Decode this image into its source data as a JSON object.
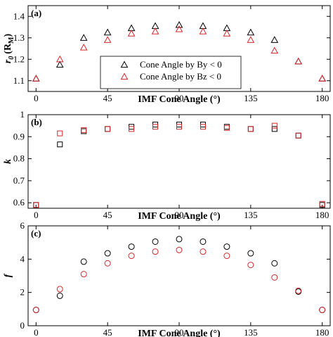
{
  "colors": {
    "by": "#000000",
    "bz": "#d62728"
  },
  "chart_data": [
    {
      "type": "scatter",
      "panel": "(a)",
      "ylabel_main": "r",
      "ylabel_sub": "0",
      "ylabel_unit": "(R",
      "ylabel_unit_sub": "M",
      "ylabel_close": ")",
      "xlabel": "IMF Cone Angle (°)",
      "xlim": [
        -5,
        185
      ],
      "ylim": [
        1.05,
        1.45
      ],
      "xticks": [
        0,
        45,
        90,
        135,
        180
      ],
      "xticklabels": [
        "0",
        "45",
        "90",
        "135",
        "180"
      ],
      "yticks": [
        1.1,
        1.2,
        1.3,
        1.4
      ],
      "yticklabels": [
        "1.1",
        "1.2",
        "1.3",
        "1.4"
      ],
      "marker": "triangle",
      "legend": {
        "placement": "center",
        "entries": [
          "Cone Angle by By < 0",
          "Cone Angle by Bz < 0"
        ]
      },
      "series": [
        {
          "name": "Cone Angle by By < 0",
          "color": "#000000",
          "x": [
            0,
            15,
            30,
            45,
            60,
            75,
            90,
            105,
            120,
            135,
            150,
            165,
            180
          ],
          "y": [
            1.11,
            1.175,
            1.3,
            1.325,
            1.345,
            1.355,
            1.36,
            1.355,
            1.345,
            1.325,
            1.29,
            1.19,
            1.11
          ]
        },
        {
          "name": "Cone Angle by Bz < 0",
          "color": "#d62728",
          "x": [
            0,
            15,
            30,
            45,
            60,
            75,
            90,
            105,
            120,
            135,
            150,
            165,
            180
          ],
          "y": [
            1.11,
            1.2,
            1.255,
            1.29,
            1.32,
            1.33,
            1.34,
            1.33,
            1.32,
            1.29,
            1.24,
            1.19,
            1.11
          ]
        }
      ]
    },
    {
      "type": "scatter",
      "panel": "(b)",
      "ylabel_main": "k",
      "xlabel": "IMF Cone Angle (°)",
      "xlim": [
        -5,
        185
      ],
      "ylim": [
        0.575,
        1.0
      ],
      "xticks": [
        0,
        45,
        90,
        135,
        180
      ],
      "xticklabels": [
        "0",
        "45",
        "90",
        "135",
        "180"
      ],
      "yticks": [
        0.6,
        0.7,
        0.8,
        0.9,
        1.0
      ],
      "yticklabels": [
        "0.6",
        "0.7",
        "0.8",
        "0.9",
        "1"
      ],
      "marker": "square",
      "series": [
        {
          "name": "Cone Angle by By < 0",
          "color": "#000000",
          "x": [
            0,
            15,
            30,
            45,
            60,
            75,
            90,
            105,
            120,
            135,
            150,
            165,
            180
          ],
          "y": [
            0.59,
            0.865,
            0.925,
            0.935,
            0.945,
            0.955,
            0.955,
            0.955,
            0.945,
            0.935,
            0.935,
            0.905,
            0.59
          ]
        },
        {
          "name": "Cone Angle by Bz < 0",
          "color": "#d62728",
          "x": [
            0,
            15,
            30,
            45,
            60,
            75,
            90,
            105,
            120,
            135,
            150,
            165,
            180
          ],
          "y": [
            0.59,
            0.915,
            0.93,
            0.935,
            0.935,
            0.945,
            0.945,
            0.945,
            0.94,
            0.935,
            0.95,
            0.905,
            0.595
          ]
        }
      ]
    },
    {
      "type": "scatter",
      "panel": "(c)",
      "ylabel_main": "f",
      "xlabel": "IMF Cone Angle (°)",
      "xlim": [
        -5,
        185
      ],
      "ylim": [
        0,
        6
      ],
      "xticks": [
        0,
        45,
        90,
        135,
        180
      ],
      "xticklabels": [
        "0",
        "45",
        "90",
        "135",
        "180"
      ],
      "yticks": [
        0,
        2,
        4,
        6
      ],
      "yticklabels": [
        "0",
        "2",
        "4",
        "6"
      ],
      "marker": "circle",
      "series": [
        {
          "name": "Cone Angle by By < 0",
          "color": "#000000",
          "x": [
            0,
            15,
            30,
            45,
            60,
            75,
            90,
            105,
            120,
            135,
            150,
            165,
            180
          ],
          "y": [
            0.95,
            1.8,
            3.85,
            4.35,
            4.75,
            5.05,
            5.2,
            5.05,
            4.75,
            4.35,
            3.75,
            2.05,
            0.95
          ]
        },
        {
          "name": "Cone Angle by Bz < 0",
          "color": "#d62728",
          "x": [
            0,
            15,
            30,
            45,
            60,
            75,
            90,
            105,
            120,
            135,
            150,
            165,
            180
          ],
          "y": [
            0.95,
            2.2,
            3.1,
            3.75,
            4.2,
            4.45,
            4.55,
            4.45,
            4.2,
            3.65,
            2.9,
            2.1,
            0.95
          ]
        }
      ]
    }
  ]
}
